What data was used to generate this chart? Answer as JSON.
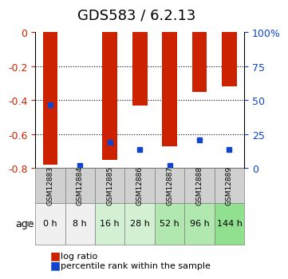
{
  "title": "GDS583 / 6.2.13",
  "samples": [
    "GSM12883",
    "GSM12884",
    "GSM12885",
    "GSM12886",
    "GSM12887",
    "GSM12888",
    "GSM12889"
  ],
  "ages": [
    "0 h",
    "8 h",
    "16 h",
    "28 h",
    "52 h",
    "96 h",
    "144 h"
  ],
  "log_ratio": [
    -0.78,
    0.0,
    -0.75,
    -0.43,
    -0.67,
    -0.35,
    -0.32
  ],
  "percentile_rank": [
    47,
    2,
    19,
    14,
    2,
    21,
    14
  ],
  "ylim_left": [
    -0.8,
    0.0
  ],
  "ylim_right": [
    0,
    100
  ],
  "bar_color": "#cc2200",
  "marker_color": "#1144cc",
  "title_fontsize": 13,
  "axis_label_color_left": "#cc2200",
  "axis_label_color_right": "#1144cc",
  "grid_color": "#000000",
  "bg_plot": "#ffffff",
  "age_bg_colors": [
    "#f0f0f0",
    "#f0f0f0",
    "#d4f0d4",
    "#d4f0d4",
    "#b0e8b0",
    "#b0e8b0",
    "#90e090"
  ],
  "sample_bg_color": "#d0d0d0",
  "yticks_left": [
    0,
    -0.2,
    -0.4,
    -0.6,
    -0.8
  ],
  "yticks_right": [
    100,
    75,
    50,
    25,
    0
  ],
  "ytick_labels_left": [
    "0",
    "-0.2",
    "-0.4",
    "-0.6",
    "-0.8"
  ],
  "ytick_labels_right": [
    "100%",
    "75",
    "50",
    "25",
    "0"
  ]
}
